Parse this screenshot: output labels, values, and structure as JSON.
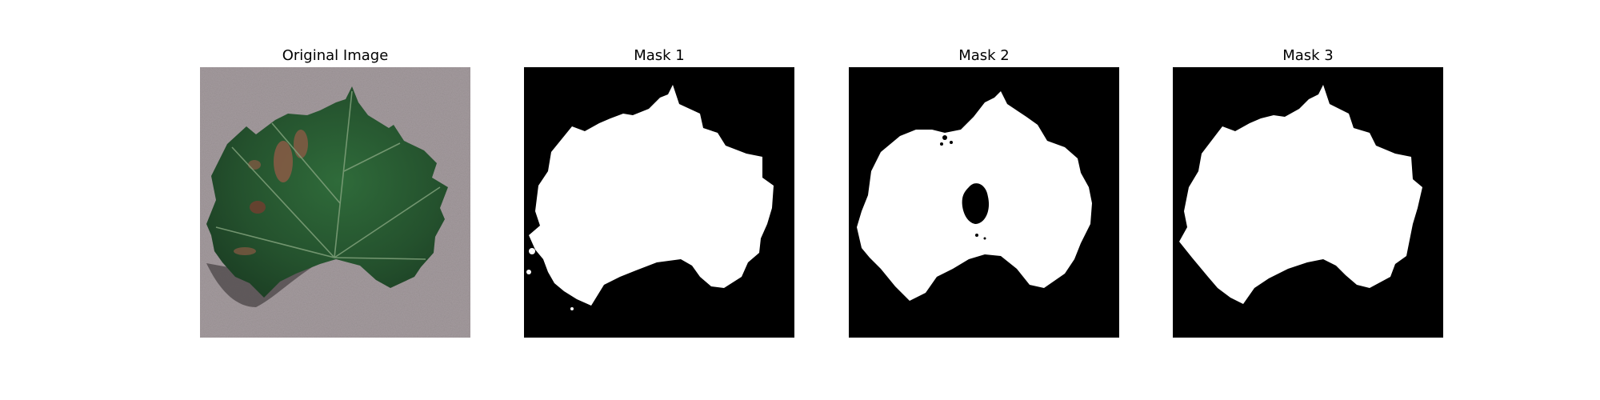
{
  "figure": {
    "panels": [
      {
        "title": "Original Image",
        "image": "leaf-photo"
      },
      {
        "title": "Mask 1",
        "image": "segmentation-mask"
      },
      {
        "title": "Mask 2",
        "image": "segmentation-mask"
      },
      {
        "title": "Mask 3",
        "image": "segmentation-mask"
      }
    ]
  },
  "colors": {
    "background": "#ffffff",
    "mask_foreground": "#ffffff",
    "mask_background": "#000000",
    "surface_gray": "#a49b9e",
    "leaf_green": "#24512d",
    "lesion_brown": "#8a5a45"
  }
}
